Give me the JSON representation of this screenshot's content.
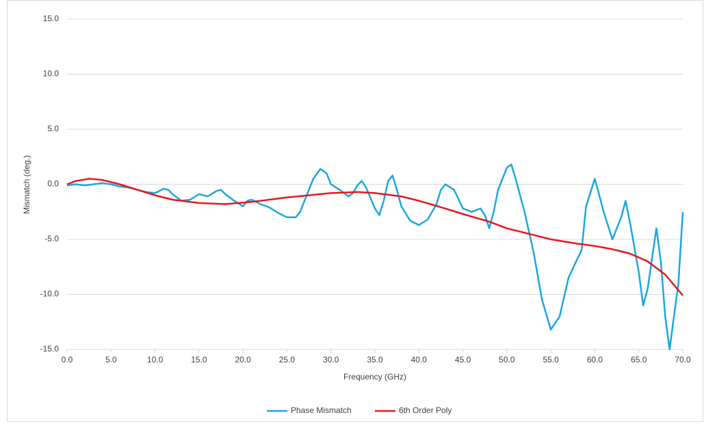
{
  "chart_data": {
    "type": "line",
    "x_label": "Frequency (GHz)",
    "y_label": "Mismatch (deg.)",
    "xlim": [
      0,
      70
    ],
    "ylim": [
      -15,
      15
    ],
    "xticks": [
      {
        "value": 0,
        "label": "0.0"
      },
      {
        "value": 5,
        "label": "5.0"
      },
      {
        "value": 10,
        "label": "10.0"
      },
      {
        "value": 15,
        "label": "15.0"
      },
      {
        "value": 20,
        "label": "20.0"
      },
      {
        "value": 25,
        "label": "25.0"
      },
      {
        "value": 30,
        "label": "30.0"
      },
      {
        "value": 35,
        "label": "35.0"
      },
      {
        "value": 40,
        "label": "40.0"
      },
      {
        "value": 45,
        "label": "45.0"
      },
      {
        "value": 50,
        "label": "50.0"
      },
      {
        "value": 55,
        "label": "55.0"
      },
      {
        "value": 60,
        "label": "60.0"
      },
      {
        "value": 65,
        "label": "65.0"
      },
      {
        "value": 70,
        "label": "70.0"
      }
    ],
    "yticks": [
      {
        "value": -15,
        "label": "-15.0"
      },
      {
        "value": -10,
        "label": "-10.0"
      },
      {
        "value": -5,
        "label": "-5.0"
      },
      {
        "value": 0,
        "label": "0.0"
      },
      {
        "value": 5,
        "label": "5.0"
      },
      {
        "value": 10,
        "label": "10.0"
      },
      {
        "value": 15,
        "label": "15.0"
      }
    ],
    "grid": true,
    "legend": "bottom",
    "series": [
      {
        "name": "Phase Mismatch",
        "color": "#1aa7df",
        "x": [
          0,
          1,
          2,
          3,
          4,
          5,
          6,
          7,
          8,
          9,
          10,
          10.5,
          11,
          11.5,
          12,
          13,
          14,
          15,
          16,
          17,
          17.5,
          18,
          19,
          20,
          20.5,
          21,
          22,
          23,
          24,
          25,
          26,
          26.5,
          27,
          28,
          28.8,
          29.5,
          30,
          31,
          32,
          32.5,
          33,
          33.5,
          34,
          35,
          35.5,
          36,
          36.5,
          37,
          37.5,
          38,
          39,
          40,
          41,
          42,
          42.5,
          43,
          44,
          45,
          46,
          47,
          47.5,
          48,
          48.5,
          49,
          50,
          50.5,
          51,
          52,
          53,
          54,
          55,
          56,
          57,
          58,
          58.5,
          59,
          60,
          60.5,
          61,
          62,
          63,
          63.5,
          64,
          65,
          65.5,
          66,
          67,
          67.5,
          68,
          68.5,
          69,
          69.5,
          70
        ],
        "values": [
          -0.1,
          0,
          -0.1,
          0,
          0.1,
          0,
          -0.2,
          -0.3,
          -0.5,
          -0.7,
          -0.8,
          -0.6,
          -0.4,
          -0.5,
          -0.9,
          -1.5,
          -1.4,
          -0.9,
          -1.1,
          -0.6,
          -0.5,
          -0.9,
          -1.5,
          -2.0,
          -1.5,
          -1.4,
          -1.8,
          -2.1,
          -2.6,
          -3.0,
          -3.0,
          -2.5,
          -1.5,
          0.5,
          1.4,
          1.0,
          0.0,
          -0.5,
          -1.1,
          -0.8,
          -0.1,
          0.3,
          -0.3,
          -2.2,
          -2.8,
          -1.5,
          0.3,
          0.8,
          -0.5,
          -2.0,
          -3.3,
          -3.7,
          -3.2,
          -1.8,
          -0.5,
          0,
          -0.5,
          -2.2,
          -2.5,
          -2.2,
          -2.8,
          -4.0,
          -2.5,
          -0.5,
          1.5,
          1.8,
          0.5,
          -2.5,
          -6.0,
          -10.5,
          -13.2,
          -12.0,
          -8.5,
          -6.8,
          -6.0,
          -2.0,
          0.5,
          -1.0,
          -2.5,
          -5.0,
          -3.0,
          -1.5,
          -3.5,
          -8.0,
          -11.0,
          -9.5,
          -4.0,
          -7.0,
          -12.0,
          -15.0,
          -12.0,
          -9.0,
          -2.5
        ]
      },
      {
        "name": "6th Order Poly",
        "color": "#e8161b",
        "x": [
          0,
          1,
          2.5,
          4,
          6,
          8,
          10,
          12,
          15,
          18,
          21,
          25,
          30,
          33,
          35,
          38,
          40,
          43,
          45,
          48,
          50,
          53,
          55,
          58,
          60,
          62,
          64,
          66,
          68,
          70
        ],
        "values": [
          0,
          0.3,
          0.5,
          0.4,
          0,
          -0.5,
          -1.0,
          -1.4,
          -1.7,
          -1.8,
          -1.6,
          -1.2,
          -0.8,
          -0.7,
          -0.8,
          -1.1,
          -1.5,
          -2.2,
          -2.7,
          -3.4,
          -4.0,
          -4.6,
          -5.0,
          -5.4,
          -5.6,
          -5.9,
          -6.3,
          -7.0,
          -8.2,
          -10.1
        ]
      }
    ]
  }
}
